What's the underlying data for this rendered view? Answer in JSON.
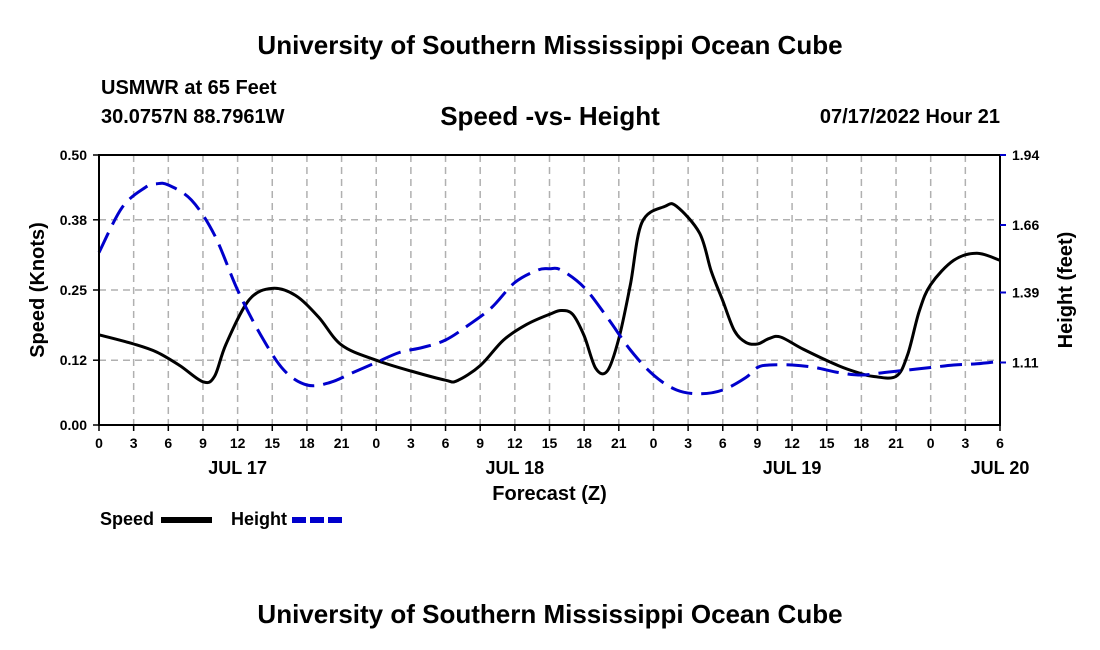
{
  "header": {
    "title": "University of Southern Mississippi Ocean Cube",
    "station": "USMWR at 65 Feet",
    "coordinates": "30.0757N  88.7961W",
    "date": "07/17/2022 Hour 21"
  },
  "footer": {
    "title": "University of Southern Mississippi Ocean Cube"
  },
  "colors": {
    "speed": "#000000",
    "height": "#0000cc",
    "grid": "#b0b0b0"
  },
  "chart_data": {
    "type": "line",
    "title": "Speed -vs- Height",
    "xlabel": "Forecast (Z)",
    "ylabel": "Speed (Knots)",
    "ylabel_right": "Height (feet)",
    "ylim": [
      0,
      0.5
    ],
    "ylim_right": [
      0.86,
      1.94
    ],
    "y_ticks": [
      "0.00",
      "0.12",
      "0.25",
      "0.38",
      "0.50"
    ],
    "y_ticks_right": [
      "1.11",
      "1.39",
      "1.66",
      "1.94"
    ],
    "x_ticks": [
      "0",
      "3",
      "6",
      "9",
      "12",
      "15",
      "18",
      "21",
      "0",
      "3",
      "6",
      "9",
      "12",
      "15",
      "18",
      "21",
      "0",
      "3",
      "6",
      "9",
      "12",
      "15",
      "18",
      "21",
      "0",
      "3",
      "6"
    ],
    "day_labels": [
      {
        "label": "JUL 17",
        "hour": 12
      },
      {
        "label": "JUL 18",
        "hour": 36
      },
      {
        "label": "JUL 19",
        "hour": 60
      },
      {
        "label": "JUL 20",
        "hour": 78
      }
    ],
    "grid": true,
    "legend": [
      {
        "name": "Speed",
        "style": "solid"
      },
      {
        "name": "Height",
        "style": "dashed"
      }
    ],
    "series": [
      {
        "name": "Speed",
        "axis": "left",
        "points": [
          [
            0,
            0.167
          ],
          [
            3,
            0.15
          ],
          [
            5,
            0.135
          ],
          [
            7,
            0.11
          ],
          [
            9,
            0.08
          ],
          [
            10,
            0.09
          ],
          [
            11,
            0.15
          ],
          [
            13,
            0.232
          ],
          [
            15,
            0.253
          ],
          [
            17,
            0.24
          ],
          [
            19,
            0.2
          ],
          [
            21,
            0.148
          ],
          [
            24,
            0.12
          ],
          [
            27,
            0.1
          ],
          [
            30,
            0.083
          ],
          [
            31,
            0.082
          ],
          [
            33,
            0.11
          ],
          [
            35,
            0.157
          ],
          [
            37,
            0.186
          ],
          [
            39,
            0.205
          ],
          [
            40,
            0.212
          ],
          [
            41,
            0.205
          ],
          [
            42,
            0.165
          ],
          [
            43,
            0.105
          ],
          [
            44,
            0.1
          ],
          [
            45,
            0.16
          ],
          [
            46,
            0.26
          ],
          [
            47,
            0.375
          ],
          [
            49,
            0.405
          ],
          [
            50,
            0.405
          ],
          [
            52,
            0.355
          ],
          [
            53,
            0.285
          ],
          [
            54,
            0.23
          ],
          [
            55,
            0.175
          ],
          [
            56,
            0.153
          ],
          [
            57,
            0.15
          ],
          [
            58,
            0.16
          ],
          [
            59,
            0.163
          ],
          [
            61,
            0.14
          ],
          [
            64,
            0.11
          ],
          [
            66,
            0.095
          ],
          [
            67,
            0.09
          ],
          [
            69,
            0.09
          ],
          [
            70,
            0.13
          ],
          [
            71,
            0.21
          ],
          [
            72,
            0.26
          ],
          [
            74,
            0.305
          ],
          [
            76,
            0.318
          ],
          [
            78,
            0.305
          ]
        ]
      },
      {
        "name": "Height",
        "axis": "right",
        "points": [
          [
            0,
            1.55
          ],
          [
            2,
            1.73
          ],
          [
            4,
            1.81
          ],
          [
            5,
            1.825
          ],
          [
            6,
            1.82
          ],
          [
            8,
            1.76
          ],
          [
            10,
            1.62
          ],
          [
            12,
            1.4
          ],
          [
            14,
            1.22
          ],
          [
            16,
            1.08
          ],
          [
            18,
            1.02
          ],
          [
            20,
            1.03
          ],
          [
            22,
            1.07
          ],
          [
            24,
            1.11
          ],
          [
            26,
            1.15
          ],
          [
            28,
            1.17
          ],
          [
            30,
            1.2
          ],
          [
            32,
            1.26
          ],
          [
            34,
            1.33
          ],
          [
            36,
            1.43
          ],
          [
            38,
            1.48
          ],
          [
            39,
            1.485
          ],
          [
            40,
            1.48
          ],
          [
            42,
            1.41
          ],
          [
            44,
            1.29
          ],
          [
            46,
            1.16
          ],
          [
            48,
            1.06
          ],
          [
            50,
            1.0
          ],
          [
            52,
            0.985
          ],
          [
            54,
            1.0
          ],
          [
            56,
            1.05
          ],
          [
            57,
            1.09
          ],
          [
            58,
            1.1
          ],
          [
            60,
            1.1
          ],
          [
            62,
            1.09
          ],
          [
            64,
            1.07
          ],
          [
            66,
            1.06
          ],
          [
            68,
            1.07
          ],
          [
            70,
            1.08
          ],
          [
            72,
            1.09
          ],
          [
            74,
            1.1
          ],
          [
            76,
            1.105
          ],
          [
            78,
            1.115
          ]
        ]
      }
    ]
  }
}
